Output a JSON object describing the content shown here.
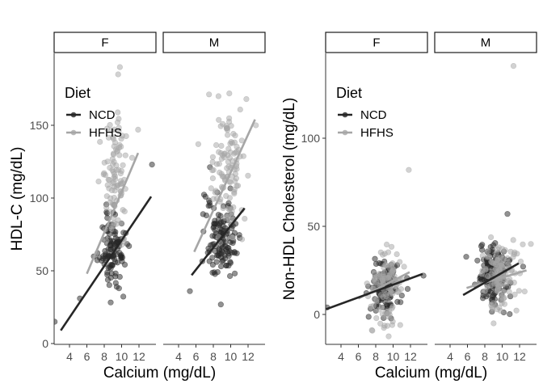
{
  "chart_data": [
    {
      "type": "scatter",
      "ylabel": "HDL-C (mg/dL)",
      "xlabel": "Calcium (mg/dL)",
      "legend_title": "Diet",
      "legend_placement": "top-left",
      "grid": false,
      "xlim": [
        2,
        14
      ],
      "ylim": [
        0,
        200
      ],
      "xticks": [
        4,
        6,
        8,
        10,
        12
      ],
      "yticks": [
        0,
        50,
        100,
        150
      ],
      "series": [
        {
          "name": "NCD",
          "color": "#262626"
        },
        {
          "name": "HFHS",
          "color": "#a6a6a6"
        }
      ],
      "facets": [
        {
          "label": "F",
          "fits": [
            {
              "series": "NCD",
              "x": [
                3.0,
                13.4
              ],
              "y": [
                9,
                101
              ]
            },
            {
              "series": "HFHS",
              "x": [
                6.0,
                11.9
              ],
              "y": [
                48,
                131
              ]
            }
          ],
          "clusters": [
            {
              "series": "NCD",
              "x_center": 9.0,
              "x_sd": 0.8,
              "y_center": 65,
              "y_sd": 13,
              "n": 110
            },
            {
              "series": "HFHS",
              "x_center": 9.3,
              "x_sd": 0.8,
              "y_center": 112,
              "y_sd": 22,
              "n": 100
            }
          ],
          "outliers": [
            {
              "series": "NCD",
              "x": 2.3,
              "y": 15
            },
            {
              "series": "NCD",
              "x": 13.5,
              "y": 123
            },
            {
              "series": "NCD",
              "x": 5.2,
              "y": 31
            },
            {
              "series": "HFHS",
              "x": 9.8,
              "y": 190
            },
            {
              "series": "HFHS",
              "x": 9.6,
              "y": 185
            },
            {
              "series": "HFHS",
              "x": 11.9,
              "y": 147
            }
          ]
        },
        {
          "label": "M",
          "fits": [
            {
              "series": "NCD",
              "x": [
                5.5,
                11.6
              ],
              "y": [
                47,
                93
              ]
            },
            {
              "series": "HFHS",
              "x": [
                5.8,
                12.8
              ],
              "y": [
                63,
                154
              ]
            }
          ],
          "clusters": [
            {
              "series": "NCD",
              "x_center": 9.0,
              "x_sd": 0.9,
              "y_center": 72,
              "y_sd": 14,
              "n": 130
            },
            {
              "series": "HFHS",
              "x_center": 9.6,
              "x_sd": 1.0,
              "y_center": 117,
              "y_sd": 22,
              "n": 110
            }
          ],
          "outliers": [
            {
              "series": "HFHS",
              "x": 12.9,
              "y": 150
            },
            {
              "series": "HFHS",
              "x": 11.8,
              "y": 168
            },
            {
              "series": "HFHS",
              "x": 8.6,
              "y": 170
            },
            {
              "series": "NCD",
              "x": 5.3,
              "y": 36
            }
          ]
        }
      ]
    },
    {
      "type": "scatter",
      "ylabel": "Non-HDL Cholesterol (mg/dL)",
      "xlabel": "Calcium (mg/dL)",
      "legend_title": "Diet",
      "legend_placement": "top-left",
      "grid": false,
      "xlim": [
        2,
        14
      ],
      "ylim": [
        -17,
        150
      ],
      "xticks": [
        4,
        6,
        8,
        10,
        12
      ],
      "yticks": [
        0,
        50,
        100
      ],
      "series": [
        {
          "name": "NCD",
          "color": "#262626"
        },
        {
          "name": "HFHS",
          "color": "#a6a6a6"
        }
      ],
      "facets": [
        {
          "label": "F",
          "fits": [
            {
              "series": "NCD",
              "x": [
                2.3,
                13.4
              ],
              "y": [
                3,
                23
              ]
            },
            {
              "series": "HFHS",
              "x": [
                6.0,
                11.9
              ],
              "y": [
                9,
                24
              ]
            }
          ],
          "clusters": [
            {
              "series": "NCD",
              "x_center": 9.0,
              "x_sd": 0.8,
              "y_center": 15,
              "y_sd": 8,
              "n": 120
            },
            {
              "series": "HFHS",
              "x_center": 9.3,
              "x_sd": 0.9,
              "y_center": 17,
              "y_sd": 11,
              "n": 100
            }
          ],
          "outliers": [
            {
              "series": "NCD",
              "x": 2.4,
              "y": 4
            },
            {
              "series": "NCD",
              "x": 13.5,
              "y": 22
            },
            {
              "series": "HFHS",
              "x": 11.8,
              "y": 82
            },
            {
              "series": "HFHS",
              "x": 9.9,
              "y": -6
            }
          ]
        },
        {
          "label": "M",
          "fits": [
            {
              "series": "NCD",
              "x": [
                5.5,
                11.9
              ],
              "y": [
                11,
                29
              ]
            },
            {
              "series": "HFHS",
              "x": [
                5.9,
                12.8
              ],
              "y": [
                15,
                25
              ]
            }
          ],
          "clusters": [
            {
              "series": "NCD",
              "x_center": 9.0,
              "x_sd": 1.0,
              "y_center": 22,
              "y_sd": 9,
              "n": 130
            },
            {
              "series": "HFHS",
              "x_center": 9.6,
              "x_sd": 1.1,
              "y_center": 22,
              "y_sd": 9,
              "n": 110
            }
          ],
          "outliers": [
            {
              "series": "HFHS",
              "x": 11.3,
              "y": 141
            },
            {
              "series": "NCD",
              "x": 10.6,
              "y": 57
            },
            {
              "series": "HFHS",
              "x": 13.3,
              "y": 40
            }
          ]
        }
      ]
    }
  ]
}
